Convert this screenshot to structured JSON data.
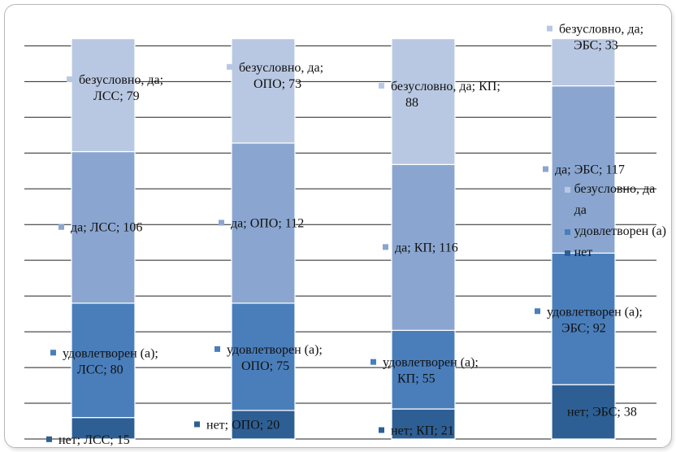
{
  "chart_data": {
    "type": "bar",
    "stacked": true,
    "categories": [
      "ЛСС",
      "ОПО",
      "КП",
      "ЭБС"
    ],
    "series": [
      {
        "name": "нет",
        "values": [
          15,
          20,
          21,
          38
        ],
        "color": "#2e5f94"
      },
      {
        "name": "удовлетворен (а)",
        "values": [
          80,
          75,
          55,
          92
        ],
        "color": "#4a7ebb"
      },
      {
        "name": "да",
        "values": [
          106,
          112,
          116,
          117
        ],
        "color": "#8aa6d0"
      },
      {
        "name": "безусловно, да",
        "values": [
          79,
          73,
          88,
          33
        ],
        "color": "#b9c8e2"
      }
    ],
    "data_labels": [
      [
        "нет; ЛСС; 15",
        "нет; ОПО; 20",
        "нет; КП; 21",
        "нет; ЭБС; 38"
      ],
      [
        [
          "удовлетворен (а);",
          "ЛСС; 80"
        ],
        [
          "удовлетворен (а);",
          "ОПО; 75"
        ],
        [
          "удовлетворен (а);",
          "КП; 55"
        ],
        [
          "удовлетворен (а);",
          "ЭБС; 92"
        ]
      ],
      [
        "да; ЛСС; 106",
        "да; ОПО; 112",
        "да; КП; 116",
        "да; ЭБС; 117"
      ],
      [
        [
          "безусловно, да;",
          "ЛСС; 79"
        ],
        [
          "безусловно, да;",
          "ОПО; 73"
        ],
        [
          "безусловно, да; КП;",
          "88"
        ],
        [
          "безусловно, да;",
          "ЭБС; 33"
        ]
      ]
    ],
    "ylim": [
      0,
      290
    ],
    "grid": true,
    "legend_position": "right",
    "legend_order": [
      "безусловно, да",
      "да",
      "удовлетворен (а)",
      "нет"
    ]
  }
}
